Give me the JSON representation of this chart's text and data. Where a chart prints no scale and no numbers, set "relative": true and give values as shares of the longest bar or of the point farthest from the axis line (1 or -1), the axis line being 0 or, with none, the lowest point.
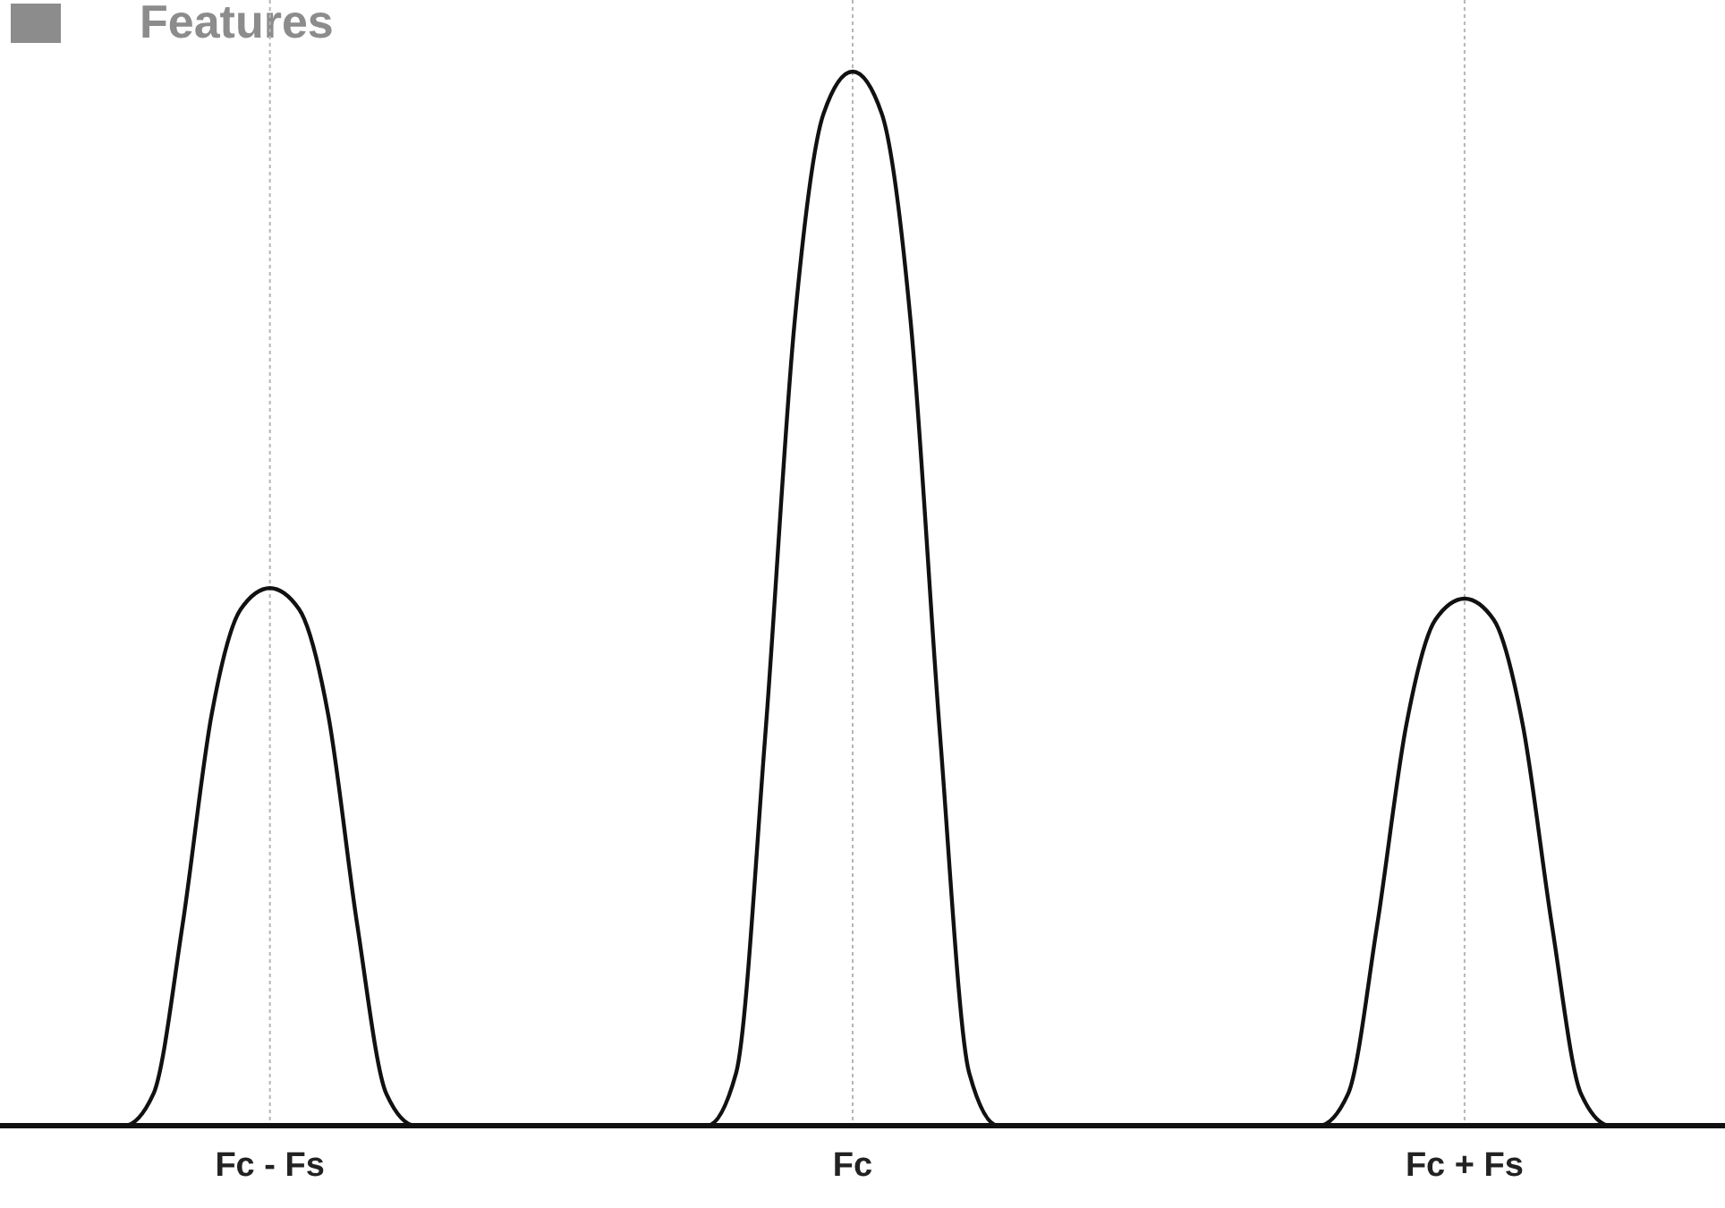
{
  "chart_data": {
    "type": "line",
    "title": "Features",
    "relative": true,
    "grid": "x",
    "categories": [
      null,
      null,
      null,
      null,
      null,
      null,
      null,
      null,
      null,
      null,
      "Fc - Fs",
      null,
      null,
      null,
      null,
      null,
      null,
      null,
      null,
      null,
      null,
      null,
      null,
      null,
      null,
      null,
      null,
      null,
      null,
      null,
      "Fc",
      null,
      null,
      null,
      null,
      null,
      null,
      null,
      null,
      null,
      null,
      null,
      null,
      null,
      null,
      null,
      null,
      null,
      null,
      null,
      null,
      "Fc + Fs",
      null,
      null,
      null,
      null,
      null,
      null,
      null,
      null,
      null
    ],
    "series": [
      {
        "color": "#111111",
        "values": [
          0,
          0,
          0,
          0,
          0,
          0,
          0.03,
          0.19,
          0.39,
          0.49,
          0.51,
          0.49,
          0.39,
          0.19,
          0.03,
          0,
          0,
          0,
          0,
          0,
          0,
          0,
          0,
          0,
          0,
          0,
          0.05,
          0.37,
          0.76,
          0.96,
          1,
          0.96,
          0.76,
          0.37,
          0.05,
          0,
          0,
          0,
          0,
          0,
          0,
          0,
          0,
          0,
          0,
          0,
          0,
          0.03,
          0.19,
          0.38,
          0.48,
          0.5,
          0.48,
          0.38,
          0.19,
          0.03,
          0,
          0,
          0,
          0,
          0
        ]
      }
    ],
    "marker": "none",
    "line_style": "solid"
  }
}
